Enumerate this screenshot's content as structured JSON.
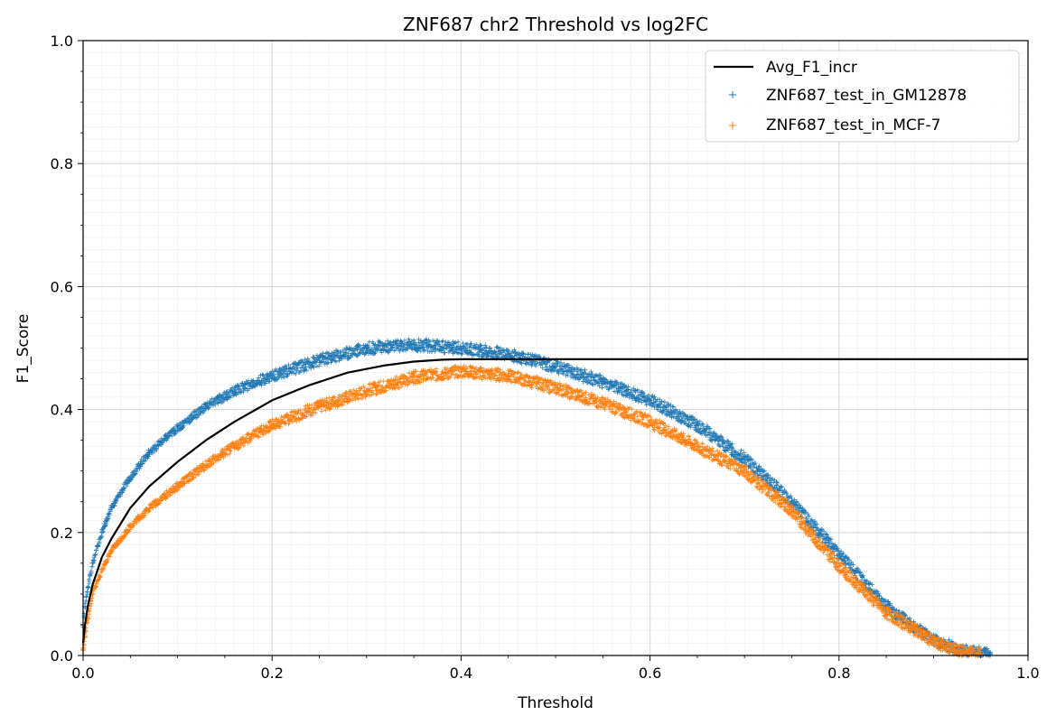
{
  "chart_data": {
    "type": "line",
    "title": "ZNF687 chr2 Threshold vs log2FC",
    "xlabel": "Threshold",
    "ylabel": "F1_Score",
    "xlim": [
      0.0,
      1.0
    ],
    "ylim": [
      0.0,
      1.0
    ],
    "xticks": [
      "0.0",
      "0.2",
      "0.4",
      "0.6",
      "0.8",
      "1.0"
    ],
    "yticks": [
      "0.0",
      "0.2",
      "0.4",
      "0.6",
      "0.8",
      "1.0"
    ],
    "grid": true,
    "legend_position": "top-right",
    "series": [
      {
        "name": "Avg_F1_incr",
        "style": "line",
        "color": "#000000",
        "x": [
          0.0,
          0.002,
          0.005,
          0.01,
          0.02,
          0.03,
          0.05,
          0.07,
          0.1,
          0.13,
          0.16,
          0.2,
          0.24,
          0.28,
          0.32,
          0.35,
          0.38,
          0.4,
          0.45,
          0.5,
          0.6,
          0.7,
          0.8,
          0.9,
          1.0
        ],
        "y": [
          0.02,
          0.05,
          0.08,
          0.115,
          0.16,
          0.19,
          0.24,
          0.275,
          0.315,
          0.35,
          0.38,
          0.415,
          0.44,
          0.46,
          0.472,
          0.478,
          0.481,
          0.482,
          0.482,
          0.482,
          0.482,
          0.482,
          0.482,
          0.482,
          0.482
        ]
      },
      {
        "name": "ZNF687_test_in_GM12878",
        "style": "scatter",
        "color": "#1f77b4",
        "x": [
          0.0,
          0.002,
          0.005,
          0.01,
          0.02,
          0.03,
          0.05,
          0.07,
          0.1,
          0.13,
          0.16,
          0.2,
          0.25,
          0.3,
          0.35,
          0.4,
          0.45,
          0.5,
          0.55,
          0.6,
          0.65,
          0.7,
          0.75,
          0.8,
          0.85,
          0.9,
          0.93,
          0.96
        ],
        "y": [
          0.05,
          0.08,
          0.11,
          0.15,
          0.2,
          0.24,
          0.29,
          0.33,
          0.37,
          0.405,
          0.43,
          0.455,
          0.48,
          0.5,
          0.505,
          0.5,
          0.49,
          0.47,
          0.445,
          0.415,
          0.375,
          0.32,
          0.25,
          0.165,
          0.08,
          0.025,
          0.008,
          0.003
        ]
      },
      {
        "name": "ZNF687_test_in_MCF-7",
        "style": "scatter",
        "color": "#ff7f0e",
        "x": [
          0.0,
          0.002,
          0.005,
          0.01,
          0.02,
          0.03,
          0.05,
          0.07,
          0.1,
          0.13,
          0.16,
          0.2,
          0.25,
          0.3,
          0.35,
          0.4,
          0.45,
          0.5,
          0.55,
          0.6,
          0.65,
          0.7,
          0.75,
          0.8,
          0.85,
          0.9,
          0.93,
          0.95
        ],
        "y": [
          0.01,
          0.03,
          0.06,
          0.1,
          0.14,
          0.17,
          0.21,
          0.24,
          0.275,
          0.31,
          0.34,
          0.375,
          0.405,
          0.43,
          0.452,
          0.462,
          0.455,
          0.435,
          0.41,
          0.38,
          0.34,
          0.3,
          0.235,
          0.145,
          0.07,
          0.022,
          0.006,
          0.002
        ]
      }
    ]
  }
}
